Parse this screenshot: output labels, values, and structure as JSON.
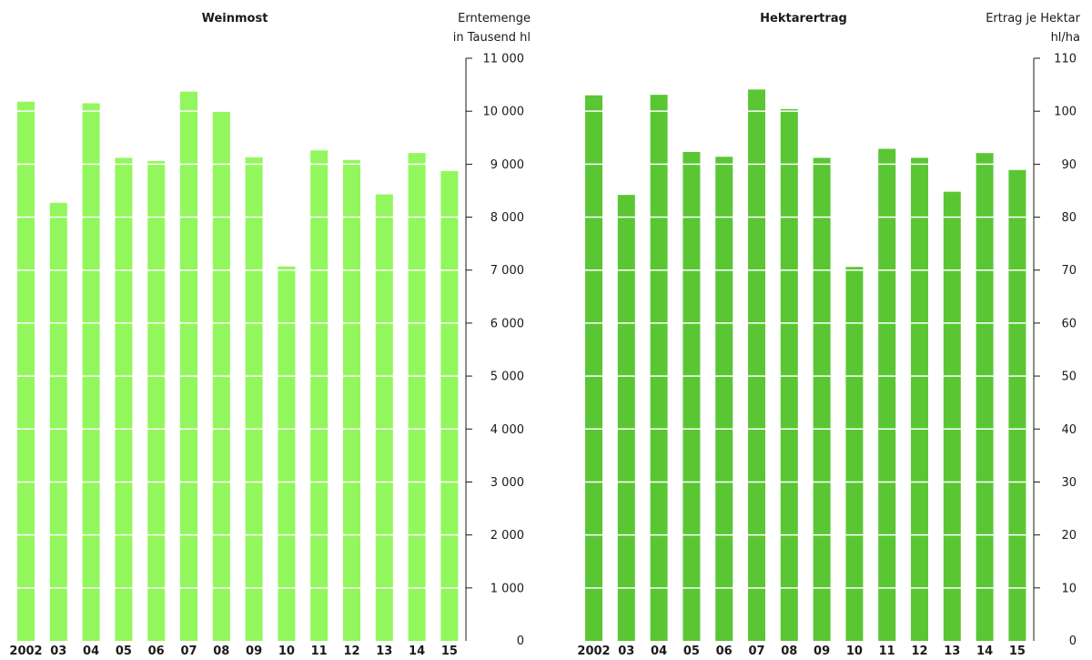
{
  "chart_data": [
    {
      "type": "bar",
      "title": "Weinmost",
      "ylabel_lines": [
        "Erntemenge",
        "in Tausend hl"
      ],
      "categories": [
        "2002",
        "03",
        "04",
        "05",
        "06",
        "07",
        "08",
        "09",
        "10",
        "11",
        "12",
        "13",
        "14",
        "15"
      ],
      "values": [
        10180,
        8270,
        10150,
        9120,
        9060,
        10370,
        9990,
        9130,
        7070,
        9260,
        9080,
        8430,
        9210,
        8870
      ],
      "yticks": [
        0,
        1000,
        2000,
        3000,
        4000,
        5000,
        6000,
        7000,
        8000,
        9000,
        10000,
        11000
      ],
      "ytick_labels": [
        "0",
        "1 000",
        "2 000",
        "3 000",
        "4 000",
        "5 000",
        "6 000",
        "7 000",
        "8 000",
        "9 000",
        "10 000",
        "11 000"
      ],
      "ylim": [
        0,
        11000
      ],
      "axis_side": "right",
      "grid": true,
      "color": "#92f75c"
    },
    {
      "type": "bar",
      "title": "Hektarertrag",
      "ylabel_lines": [
        "Ertrag je  Hektar",
        "hl/ha"
      ],
      "categories": [
        "2002",
        "03",
        "04",
        "05",
        "06",
        "07",
        "08",
        "09",
        "10",
        "11",
        "12",
        "13",
        "14",
        "15"
      ],
      "values": [
        103,
        84.2,
        103.1,
        92.3,
        91.4,
        104.1,
        100.4,
        91.2,
        70.6,
        92.9,
        91.2,
        84.8,
        92.1,
        88.9
      ],
      "yticks": [
        0,
        10,
        20,
        30,
        40,
        50,
        60,
        70,
        80,
        90,
        100,
        110
      ],
      "ytick_labels": [
        "0",
        "10",
        "20",
        "30",
        "40",
        "50",
        "60",
        "70",
        "80",
        "90",
        "100",
        "110"
      ],
      "ylim": [
        0,
        110
      ],
      "axis_side": "right",
      "grid": true,
      "color": "#5ac634"
    }
  ]
}
